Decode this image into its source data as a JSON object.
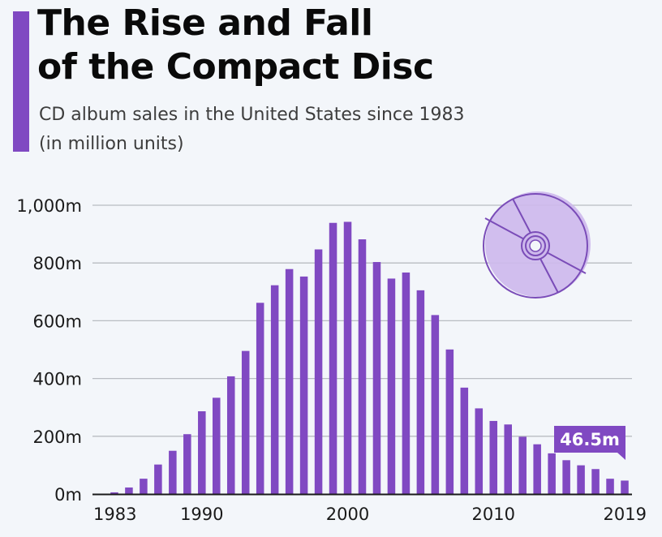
{
  "header": {
    "title_line1": "The Rise and Fall",
    "title_line2": "of the Compact Disc",
    "subtitle_line1": "CD album sales in the United States since 1983",
    "subtitle_line2": "(in million units)"
  },
  "colors": {
    "accent": "#8049c2",
    "bar": "#8049c2",
    "background": "#f3f6fa",
    "gridline": "#b9bcc2",
    "axis": "#1a1a1a",
    "cd_fill": "#cdb8ec",
    "cd_stroke": "#7a4cb8"
  },
  "icon": {
    "name": "compact-disc-icon"
  },
  "chart_data": {
    "type": "bar",
    "title": "The Rise and Fall of the Compact Disc",
    "subtitle": "CD album sales in the United States since 1983 (in million units)",
    "xlabel": "",
    "ylabel": "",
    "ylim": [
      0,
      1000
    ],
    "grid": true,
    "y_ticks": [
      0,
      200,
      400,
      600,
      800,
      1000
    ],
    "y_tick_labels": [
      "0m",
      "200m",
      "400m",
      "600m",
      "800m",
      "1,000m"
    ],
    "x_tick_labels": [
      {
        "year": 1983,
        "label": "1983"
      },
      {
        "year": 1990,
        "label": "1990"
      },
      {
        "year": 2000,
        "label": "2000"
      },
      {
        "year": 2010,
        "label": "2010"
      },
      {
        "year": 2019,
        "label": "2019"
      }
    ],
    "categories": [
      1983,
      1984,
      1985,
      1986,
      1987,
      1988,
      1989,
      1990,
      1991,
      1992,
      1993,
      1994,
      1995,
      1996,
      1997,
      1998,
      1999,
      2000,
      2001,
      2002,
      2003,
      2004,
      2005,
      2006,
      2007,
      2008,
      2009,
      2010,
      2011,
      2012,
      2013,
      2014,
      2015,
      2016,
      2017,
      2018,
      2019
    ],
    "series": [
      {
        "name": "CD album sales (million units)",
        "values": [
          0.8,
          5.8,
          22.6,
          53.0,
          102.1,
          149.7,
          207.2,
          286.5,
          333.3,
          407.5,
          495.4,
          662.1,
          722.9,
          778.9,
          753.1,
          847.0,
          938.9,
          942.5,
          881.9,
          803.3,
          746.0,
          767.0,
          705.4,
          619.7,
          500.5,
          368.4,
          296.6,
          253.0,
          240.8,
          198.2,
          172.2,
          140.8,
          117.1,
          99.4,
          86.4,
          52.9,
          46.5
        ]
      }
    ],
    "annotation": {
      "year": 2019,
      "label": "46.5m"
    }
  }
}
